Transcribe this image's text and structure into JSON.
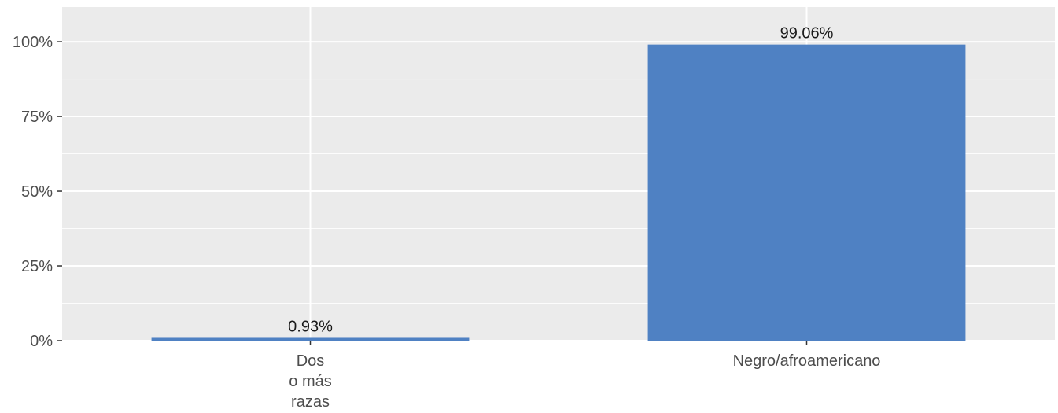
{
  "chart_data": {
    "type": "bar",
    "categories": [
      [
        "Dos",
        "o más",
        "razas"
      ],
      [
        "Negro/afroamericano"
      ]
    ],
    "values": [
      0.93,
      99.06
    ],
    "data_labels": [
      "0.93%",
      "99.06%"
    ],
    "ylim": [
      0,
      111.6
    ],
    "yticks": [
      0,
      25,
      50,
      75,
      100
    ],
    "ytick_labels": [
      "0%",
      "25%",
      "50%",
      "75%",
      "100%"
    ],
    "grid": true,
    "bar_color": "#4f81c3",
    "panel_color": "#ebebeb"
  }
}
